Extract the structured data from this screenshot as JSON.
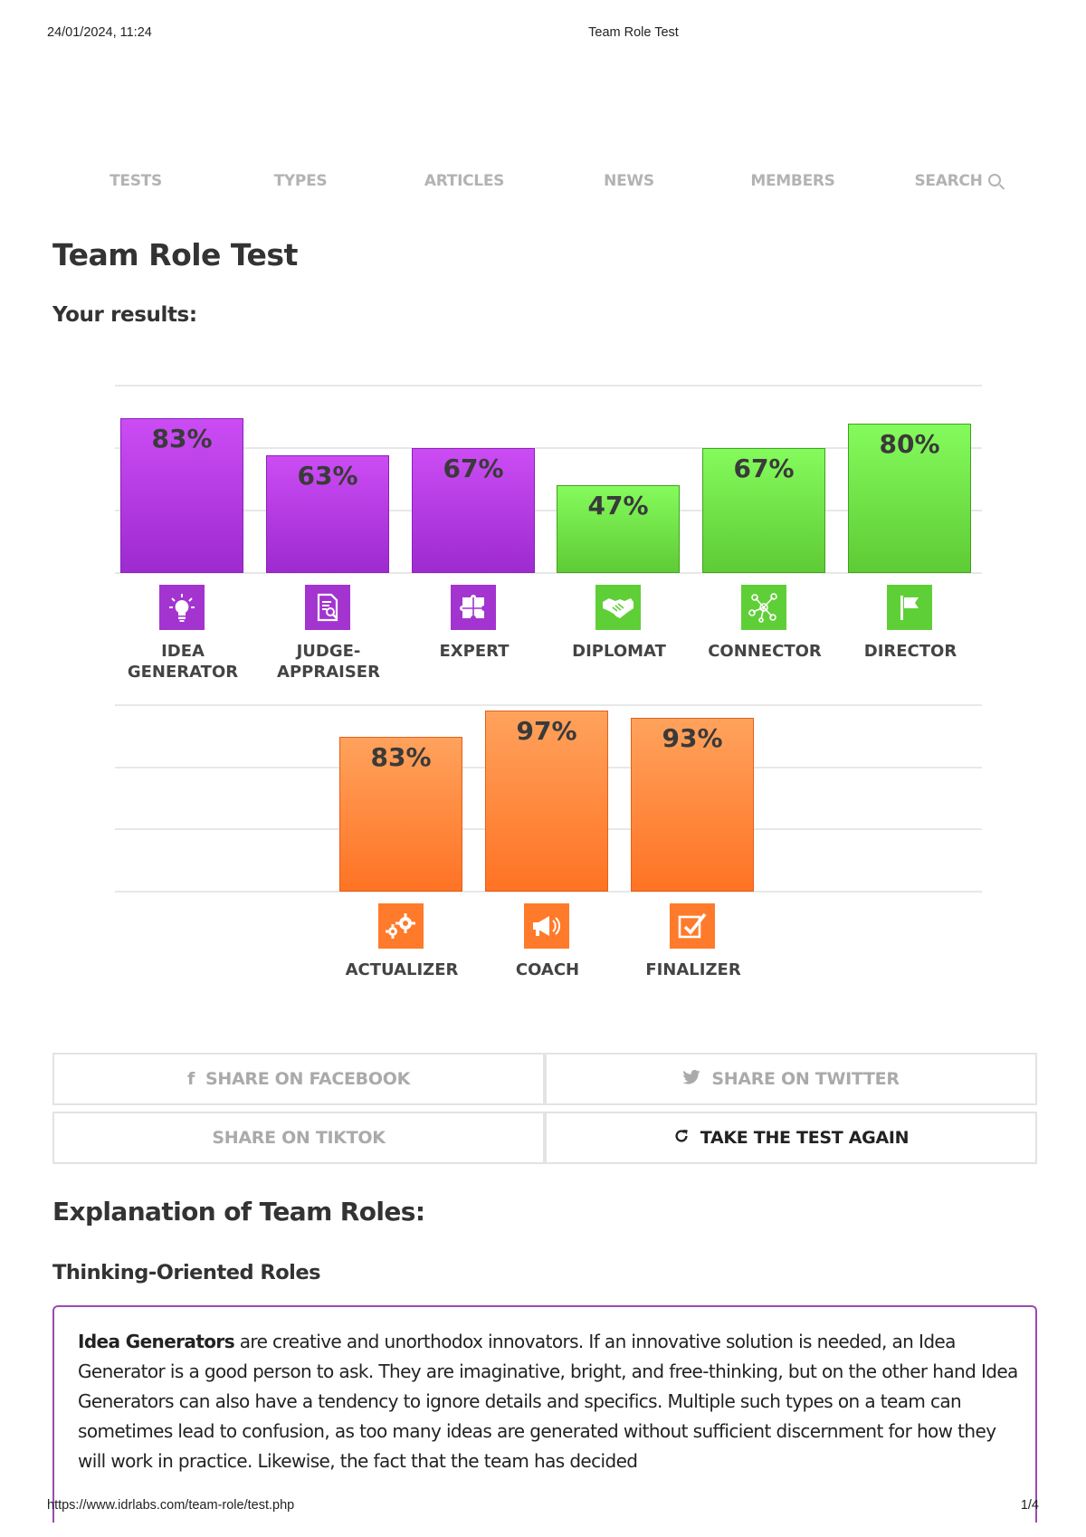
{
  "print_header": {
    "datetime": "24/01/2024, 11:24",
    "doc_title": "Team Role Test"
  },
  "print_footer": {
    "url": "https://www.idrlabs.com/team-role/test.php",
    "page": "1/4"
  },
  "nav": {
    "items": [
      "TESTS",
      "TYPES",
      "ARTICLES",
      "NEWS",
      "MEMBERS"
    ],
    "search_label": "SEARCH"
  },
  "page": {
    "title": "Team Role Test",
    "results_heading": "Your results:"
  },
  "chart_data": [
    {
      "type": "bar",
      "categories": [
        "IDEA\nGENERATOR",
        "JUDGE-\nAPPRAISER",
        "EXPERT",
        "DIPLOMAT",
        "CONNECTOR",
        "DIRECTOR"
      ],
      "values": [
        83,
        63,
        67,
        47,
        67,
        80
      ],
      "value_labels": [
        "83%",
        "63%",
        "67%",
        "47%",
        "67%",
        "80%"
      ],
      "colors": [
        "#b03ce3",
        "#b03ce3",
        "#b03ce3",
        "#6fe045",
        "#6fe045",
        "#6fe045"
      ],
      "icons": [
        "lightbulb-icon",
        "document-search-icon",
        "puzzle-icon",
        "handshake-icon",
        "network-icon",
        "flag-icon"
      ],
      "ylim": [
        0,
        100
      ],
      "grid": true
    },
    {
      "type": "bar",
      "categories": [
        "ACTUALIZER",
        "COACH",
        "FINALIZER"
      ],
      "values": [
        83,
        97,
        93
      ],
      "value_labels": [
        "83%",
        "97%",
        "93%"
      ],
      "colors": [
        "#ff8a3c",
        "#ff8a3c",
        "#ff8a3c"
      ],
      "icons": [
        "gears-icon",
        "megaphone-icon",
        "checkbox-icon"
      ],
      "ylim": [
        0,
        100
      ],
      "grid": true
    }
  ],
  "share": {
    "facebook": "SHARE ON FACEBOOK",
    "twitter": "SHARE ON TWITTER",
    "tiktok": "SHARE ON TIKTOK",
    "retake": "TAKE THE TEST AGAIN"
  },
  "explanation": {
    "heading": "Explanation of Team Roles:",
    "section": "Thinking-Oriented Roles",
    "lead": "Idea Generators",
    "text": " are creative and unorthodox innovators. If an innovative solution is needed, an Idea Generator is a good person to ask. They are imaginative, bright, and free-thinking, but on the other hand Idea Generators can also have a tendency to ignore details and specifics. Multiple such types on a team can sometimes lead to confusion, as too many ideas are generated without sufficient discernment for how they will work in practice. Likewise, the fact that the team has decided"
  }
}
